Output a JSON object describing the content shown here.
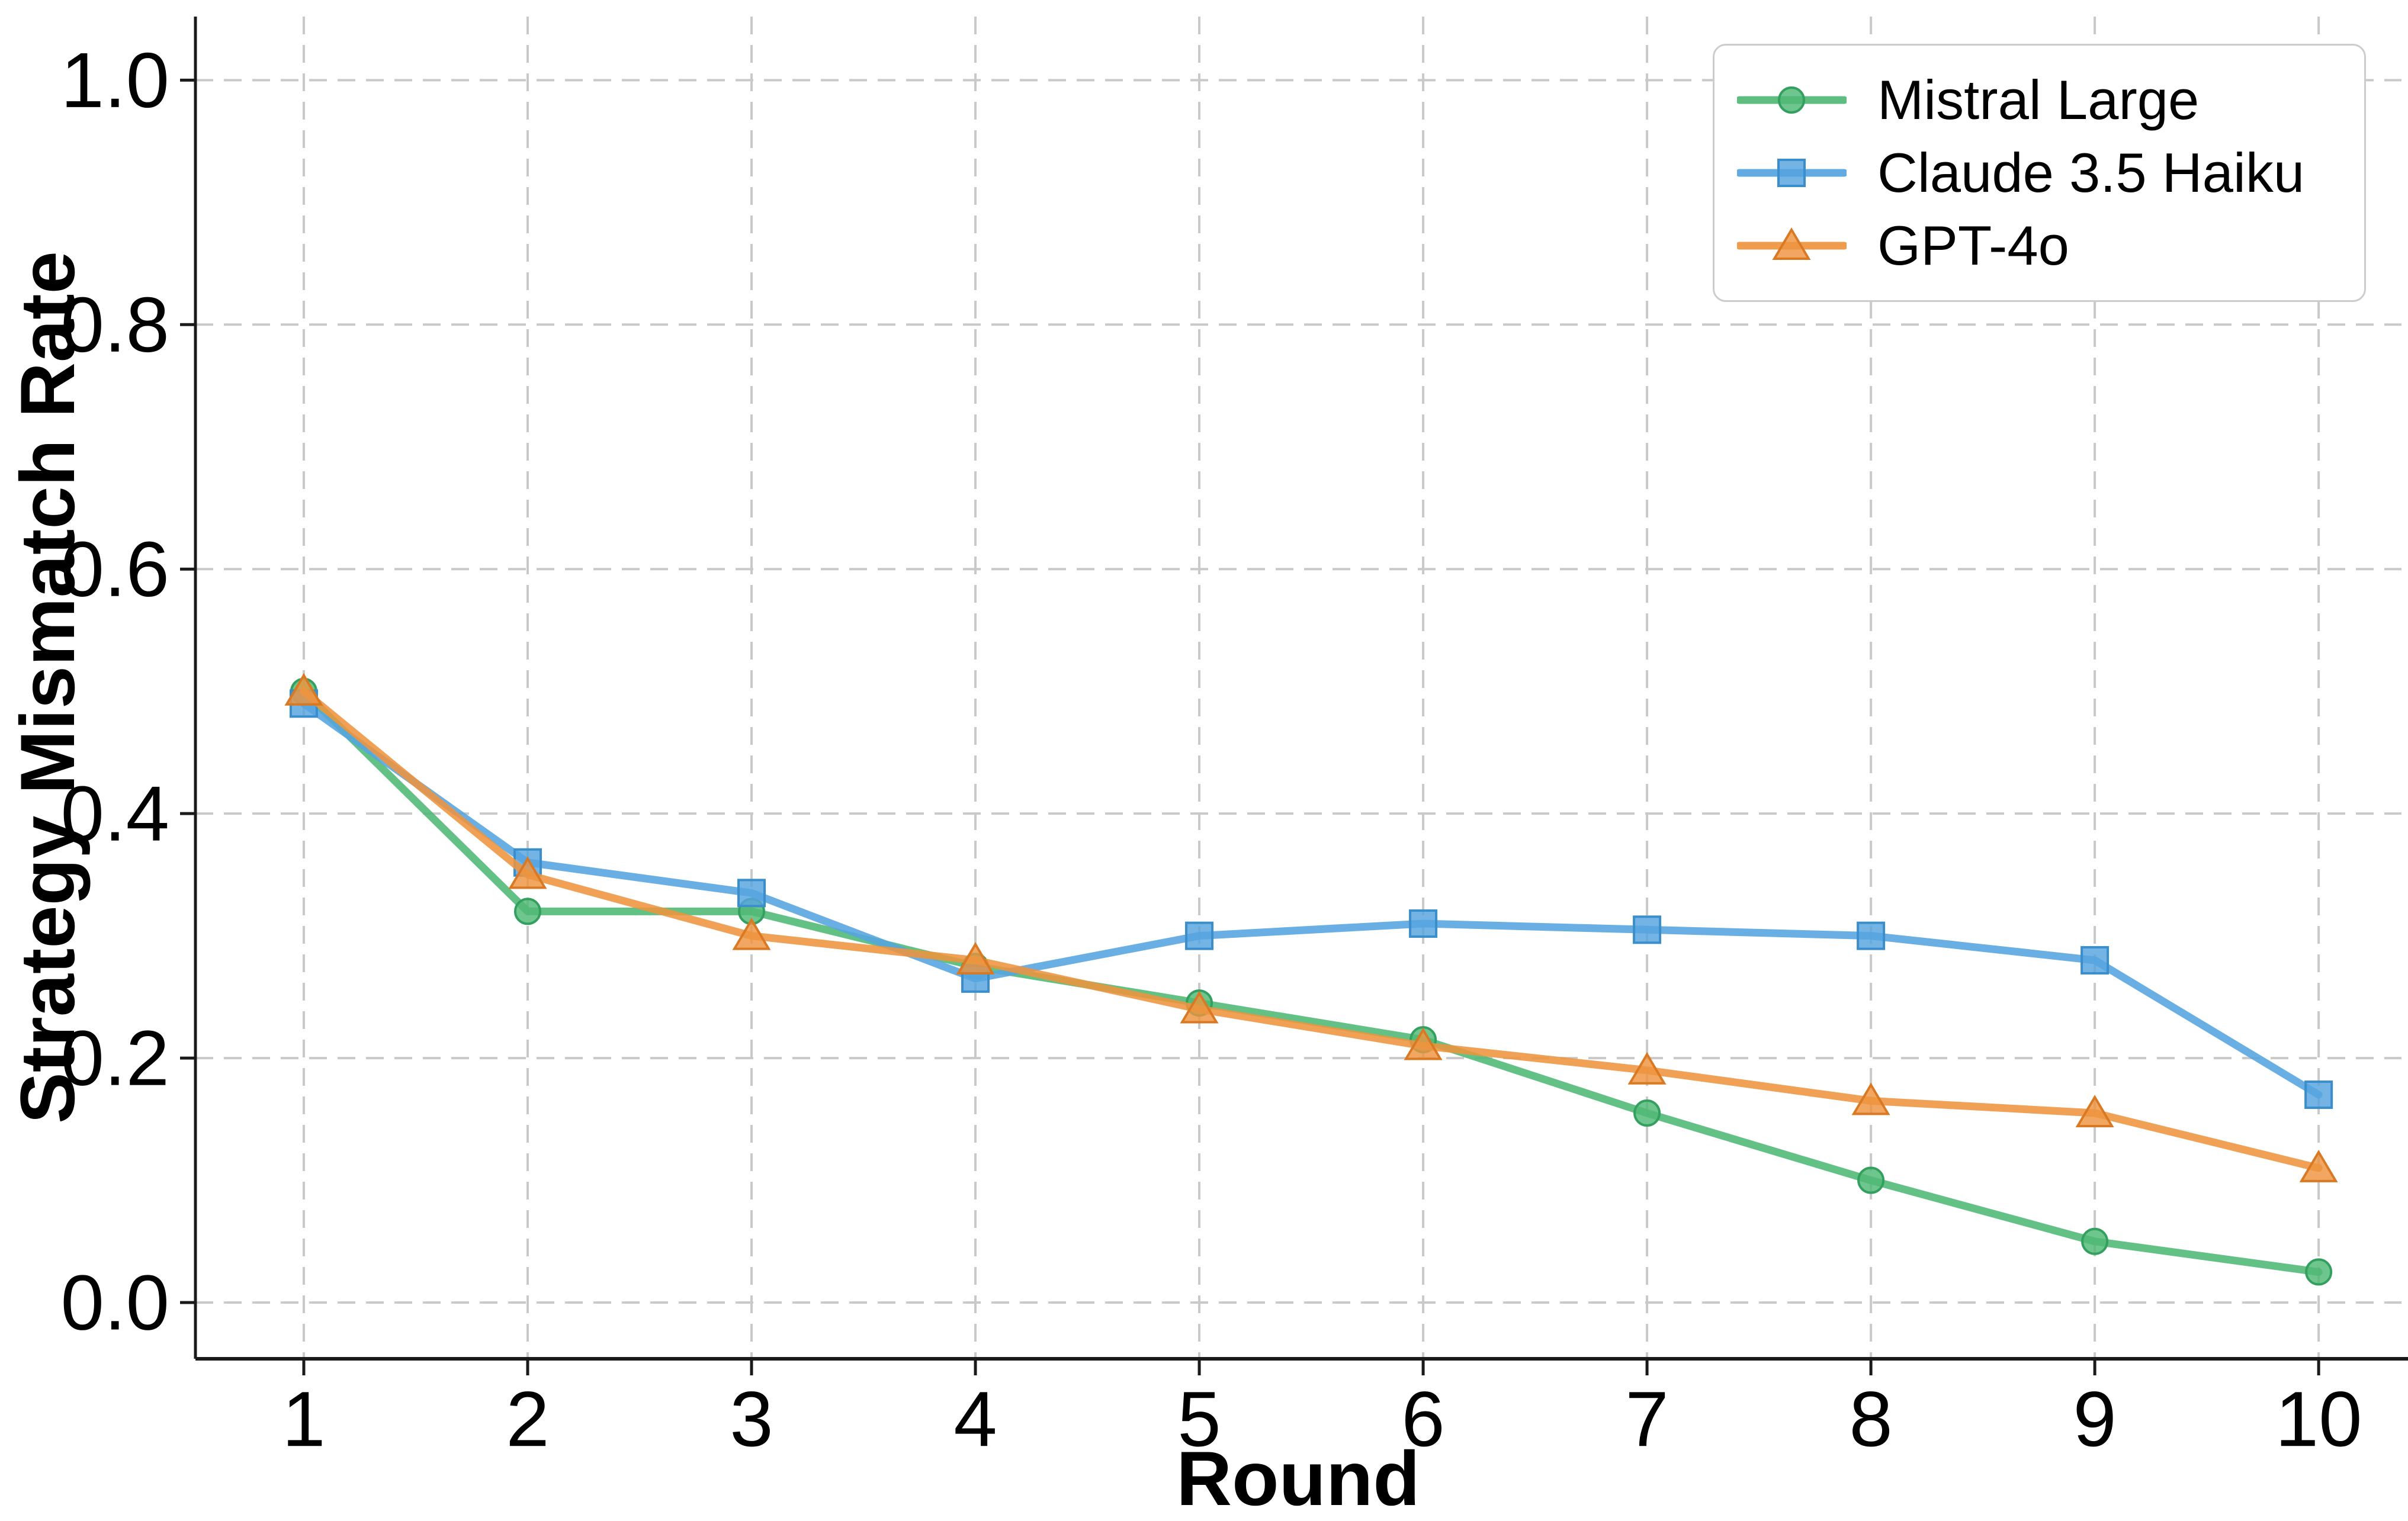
{
  "chart_data": {
    "type": "line",
    "title": "",
    "xlabel": "Round",
    "ylabel": "Strategy Mismatch Rate",
    "x": [
      1,
      2,
      3,
      4,
      5,
      6,
      7,
      8,
      9,
      10
    ],
    "xtick_labels": [
      "1",
      "2",
      "3",
      "4",
      "5",
      "6",
      "7",
      "8",
      "9",
      "10"
    ],
    "ytick_values": [
      0.0,
      0.2,
      0.4,
      0.6,
      0.8,
      1.0
    ],
    "ytick_labels": [
      "0.0",
      "0.2",
      "0.4",
      "0.6",
      "0.8",
      "1.0"
    ],
    "xlim": [
      0.516,
      10.37
    ],
    "ylim": [
      -0.046,
      1.052
    ],
    "grid": true,
    "grid_color": "#c9c9c9",
    "spine_color": "#1a1a1a",
    "legend_position": "upper right",
    "series": [
      {
        "name": "Mistral Large",
        "marker": "circle",
        "color": "#4fb875",
        "edge_color": "#33a05f",
        "values": [
          0.5,
          0.32,
          0.32,
          0.275,
          0.245,
          0.215,
          0.155,
          0.1,
          0.05,
          0.025
        ]
      },
      {
        "name": "Claude 3.5 Haiku",
        "marker": "square",
        "color": "#55a4df",
        "edge_color": "#3a8ecc",
        "values": [
          0.49,
          0.36,
          0.335,
          0.265,
          0.3,
          0.31,
          0.305,
          0.3,
          0.28,
          0.17
        ]
      },
      {
        "name": "GPT-4o",
        "marker": "triangle",
        "color": "#ee943e",
        "edge_color": "#d97923",
        "values": [
          0.5,
          0.35,
          0.3,
          0.28,
          0.24,
          0.21,
          0.19,
          0.165,
          0.155,
          0.11
        ]
      }
    ]
  }
}
